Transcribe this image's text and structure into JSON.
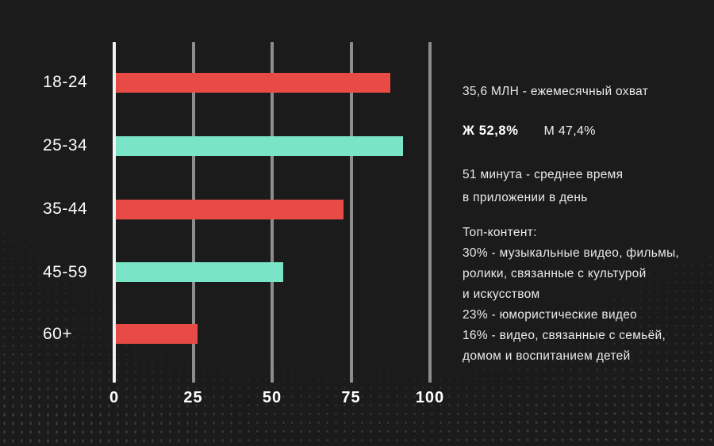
{
  "background_color": "#1b1b1c",
  "chart_data": {
    "type": "bar",
    "orientation": "horizontal",
    "title": "",
    "xlabel": "",
    "ylabel": "",
    "categories": [
      "18-24",
      "25-34",
      "35-44",
      "45-59",
      "60+"
    ],
    "values": [
      87,
      91,
      72,
      53,
      26
    ],
    "bar_colors": [
      "#e84b46",
      "#79e4c6",
      "#e84b46",
      "#79e4c6",
      "#e84b46"
    ],
    "x_ticks": [
      0,
      25,
      50,
      75,
      100
    ],
    "xlim": [
      0,
      100
    ],
    "grid": "vertical",
    "axis_line_color": "#f2f2f2",
    "grid_line_color": "#8d8d8d",
    "label_color": "#ffffff",
    "legend": "none"
  },
  "stats": {
    "reach": "35,6 МЛН - ежемесячный охват",
    "gender_female": "Ж 52,8%",
    "gender_male": "М 47,4%",
    "time_lines": [
      "51 минута - среднее время",
      "в приложении в день"
    ],
    "top_content_lines": [
      "Топ-контент:",
      "30% - музыкальные видео, фильмы,",
      "ролики, связанные с культурой",
      "и искусством",
      "23% - юмористические видео",
      "16% - видео, связанные с семьёй,",
      "домом и воспитанием детей"
    ]
  }
}
